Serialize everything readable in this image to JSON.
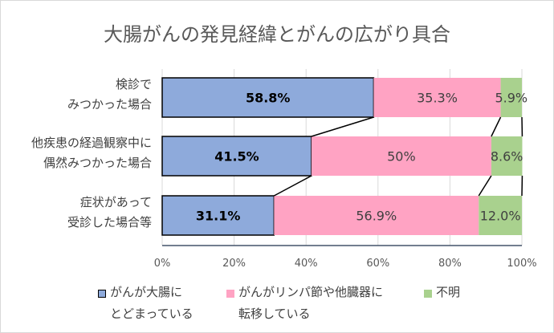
{
  "chart_data": {
    "type": "bar",
    "orientation": "horizontal",
    "stacked": "percent",
    "title": "大腸がんの発見経緯とがんの広がり具合",
    "categories": [
      "検診で\nみつかった場合",
      "他疾患の経過観察中に\n偶然みつかった場合",
      "症状があって\n受診した場合等"
    ],
    "series": [
      {
        "name": "がんが大腸に\nとどまっている",
        "values": [
          58.8,
          41.5,
          31.1
        ],
        "labels": [
          "58.8%",
          "41.5%",
          "31.1%"
        ],
        "color": "#8eaadb"
      },
      {
        "name": "がんがリンパ節や他臓器に\n転移している",
        "values": [
          35.3,
          50,
          56.9
        ],
        "labels": [
          "35.3%",
          "50%",
          "56.9%"
        ],
        "color": "#ffa3c3"
      },
      {
        "name": "不明",
        "values": [
          5.9,
          8.6,
          12.0
        ],
        "labels": [
          "5.9%",
          "8.6%",
          "12.0%"
        ],
        "color": "#a9d18e"
      }
    ],
    "xlim": [
      0,
      100
    ],
    "xticks": [
      "0%",
      "20%",
      "40%",
      "60%",
      "80%",
      "100%"
    ],
    "grid": true,
    "series_lines": true,
    "legend": "bottom"
  }
}
